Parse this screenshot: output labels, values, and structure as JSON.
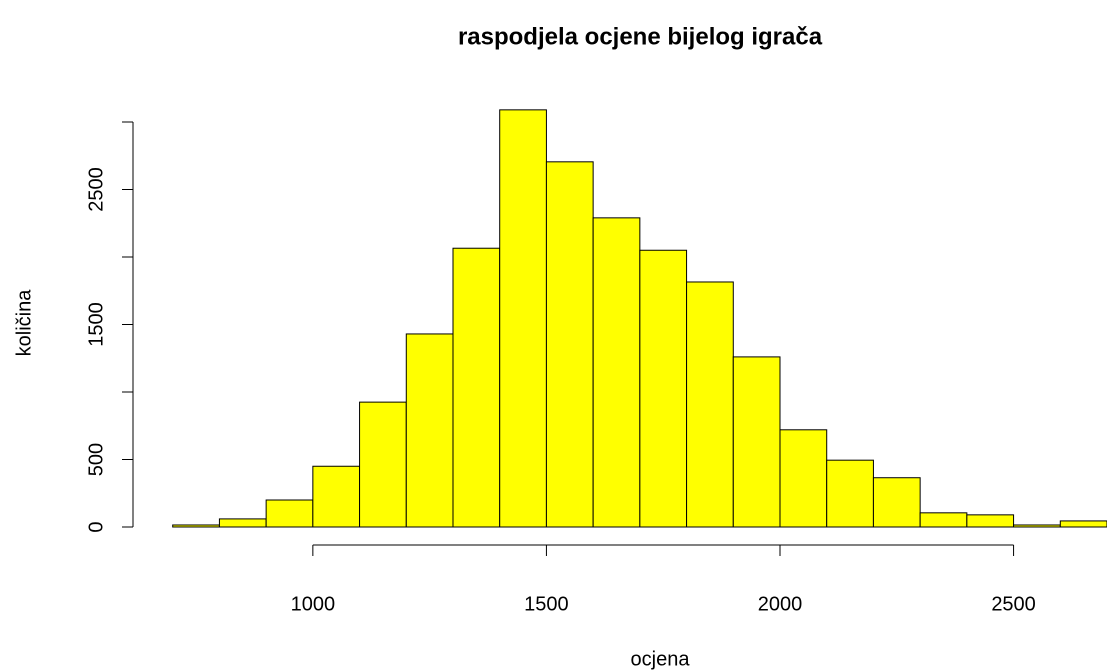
{
  "chart_data": {
    "type": "histogram",
    "title": "raspodjela ocjene bijelog igrača",
    "xlabel": "ocjena",
    "ylabel": "količina",
    "bins": [
      700,
      800,
      900,
      1000,
      1100,
      1200,
      1300,
      1400,
      1500,
      1600,
      1700,
      1800,
      1900,
      2000,
      2100,
      2200,
      2300,
      2400,
      2500,
      2600,
      2700
    ],
    "counts": [
      15,
      60,
      200,
      450,
      925,
      1430,
      2065,
      3090,
      2705,
      2290,
      2050,
      1815,
      1260,
      720,
      495,
      365,
      105,
      90,
      15,
      45
    ],
    "color": "#ffff00",
    "xlim": [
      615,
      2700
    ],
    "xticks": [
      1000,
      1500,
      2000,
      2500
    ],
    "ylim": [
      0,
      3000
    ],
    "yticks": [
      0,
      500,
      {
        "value": 1000,
        "label": null
      },
      1500,
      {
        "value": 2000,
        "label": null
      },
      2500,
      {
        "value": 3000,
        "label": null
      }
    ]
  }
}
